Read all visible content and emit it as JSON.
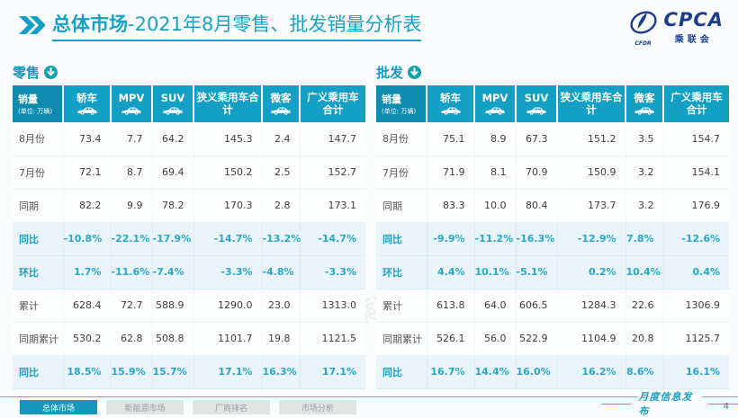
{
  "header": {
    "title_bold": "总体市场",
    "title_rest": "-2021年8月零售、批发销量分析表",
    "logo": {
      "name": "CPCA",
      "sub": "乘联会",
      "small": "CFDR"
    }
  },
  "columns": {
    "sales_label": "销量",
    "sales_unit": "(单位: 万辆)",
    "items": [
      {
        "label": "轿车",
        "icon": "sedan-icon"
      },
      {
        "label": "MPV",
        "icon": "mpv-icon"
      },
      {
        "label": "SUV",
        "icon": "suv-icon"
      },
      {
        "label": "狭义乘用车合计",
        "icon": null
      },
      {
        "label": "微客",
        "icon": "minibus-icon"
      },
      {
        "label": "广义乘用车合计",
        "icon": null
      }
    ]
  },
  "tables": [
    {
      "id": "retail",
      "section_label": "零售",
      "rows": [
        {
          "label": "8月份",
          "type": "data",
          "cells": [
            "73.4",
            "7.7",
            "64.2",
            "145.3",
            "2.4",
            "147.7"
          ]
        },
        {
          "label": "7月份",
          "type": "data",
          "cells": [
            "72.1",
            "8.7",
            "69.4",
            "150.2",
            "2.5",
            "152.7"
          ]
        },
        {
          "label": "同期",
          "type": "data",
          "cells": [
            "82.2",
            "9.9",
            "78.2",
            "170.3",
            "2.8",
            "173.1"
          ]
        },
        {
          "label": "同比",
          "type": "pct",
          "cells": [
            "-10.8%",
            "-22.1%",
            "-17.9%",
            "-14.7%",
            "-13.2%",
            "-14.7%"
          ]
        },
        {
          "label": "环比",
          "type": "pct",
          "cells": [
            "1.7%",
            "-11.6%",
            "-7.4%",
            "-3.3%",
            "-4.8%",
            "-3.3%"
          ]
        },
        {
          "label": "累计",
          "type": "data",
          "cells": [
            "628.4",
            "72.7",
            "588.9",
            "1290.0",
            "23.0",
            "1313.0"
          ]
        },
        {
          "label": "同期累计",
          "type": "data",
          "cells": [
            "530.2",
            "62.8",
            "508.8",
            "1101.7",
            "19.8",
            "1121.5"
          ]
        },
        {
          "label": "同比",
          "type": "pct",
          "cells": [
            "18.5%",
            "15.9%",
            "15.7%",
            "17.1%",
            "16.3%",
            "17.1%"
          ]
        }
      ]
    },
    {
      "id": "wholesale",
      "section_label": "批发",
      "rows": [
        {
          "label": "8月份",
          "type": "data",
          "cells": [
            "75.1",
            "8.9",
            "67.3",
            "151.2",
            "3.5",
            "154.7"
          ]
        },
        {
          "label": "7月份",
          "type": "data",
          "cells": [
            "71.9",
            "8.1",
            "70.9",
            "150.9",
            "3.2",
            "154.1"
          ]
        },
        {
          "label": "同期",
          "type": "data",
          "cells": [
            "83.3",
            "10.0",
            "80.4",
            "173.7",
            "3.2",
            "176.9"
          ]
        },
        {
          "label": "同比",
          "type": "pct",
          "cells": [
            "-9.9%",
            "-11.2%",
            "-16.3%",
            "-12.9%",
            "7.8%",
            "-12.6%"
          ]
        },
        {
          "label": "环比",
          "type": "pct",
          "cells": [
            "4.4%",
            "10.1%",
            "-5.1%",
            "0.2%",
            "10.4%",
            "0.4%"
          ]
        },
        {
          "label": "累计",
          "type": "data",
          "cells": [
            "613.8",
            "64.0",
            "606.5",
            "1284.3",
            "22.6",
            "1306.9"
          ]
        },
        {
          "label": "同期累计",
          "type": "data",
          "cells": [
            "526.1",
            "56.0",
            "522.9",
            "1104.9",
            "20.8",
            "1125.7"
          ]
        },
        {
          "label": "同比",
          "type": "pct",
          "cells": [
            "16.7%",
            "14.4%",
            "16.0%",
            "16.2%",
            "8.6%",
            "16.1%"
          ]
        }
      ]
    }
  ],
  "footer": {
    "tabs": [
      {
        "label": "总体市场",
        "active": true
      },
      {
        "label": "新能源市场",
        "active": false
      },
      {
        "label": "厂商排名",
        "active": false
      },
      {
        "label": "市场分析",
        "active": false
      }
    ],
    "publish_label": "月度信息发布",
    "page_number": "4"
  },
  "watermark": {
    "text": "CPCA 乘联会"
  },
  "colors": {
    "teal_header": "#149fc4",
    "teal_header_dark": "#0e8bae",
    "teal_title": "#17a2c4",
    "row_highlight": "#e9f5fa",
    "pct_text": "#2aa6c9",
    "logo_blue": "#1c3e8f",
    "tab_active": "#1596ba",
    "tab_inactive": "#e2e3e3"
  }
}
